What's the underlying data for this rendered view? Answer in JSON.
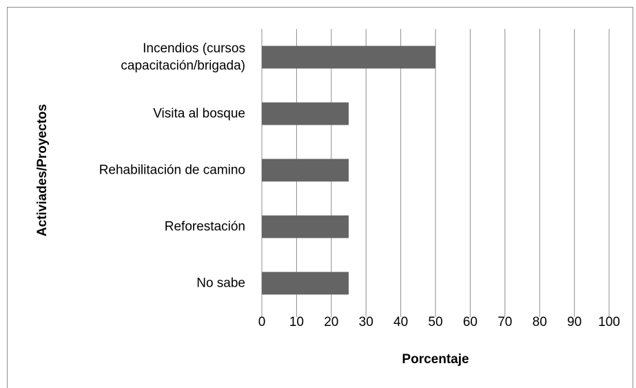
{
  "chart_data": {
    "type": "barh",
    "categories": [
      "Incendios (cursos\ncapacitación/brigada)",
      "Visita al bosque",
      "Rehabilitación de camino",
      "Reforestación ",
      "No sabe"
    ],
    "values": [
      50,
      25,
      25,
      25,
      25
    ],
    "color": "#646464",
    "xlabel": "Porcentaje",
    "ylabel": "Activiades/Proyectos",
    "xlim": [
      0,
      100
    ],
    "xticks": [
      0,
      10,
      20,
      30,
      40,
      50,
      60,
      70,
      80,
      90,
      100
    ],
    "grid": true
  }
}
